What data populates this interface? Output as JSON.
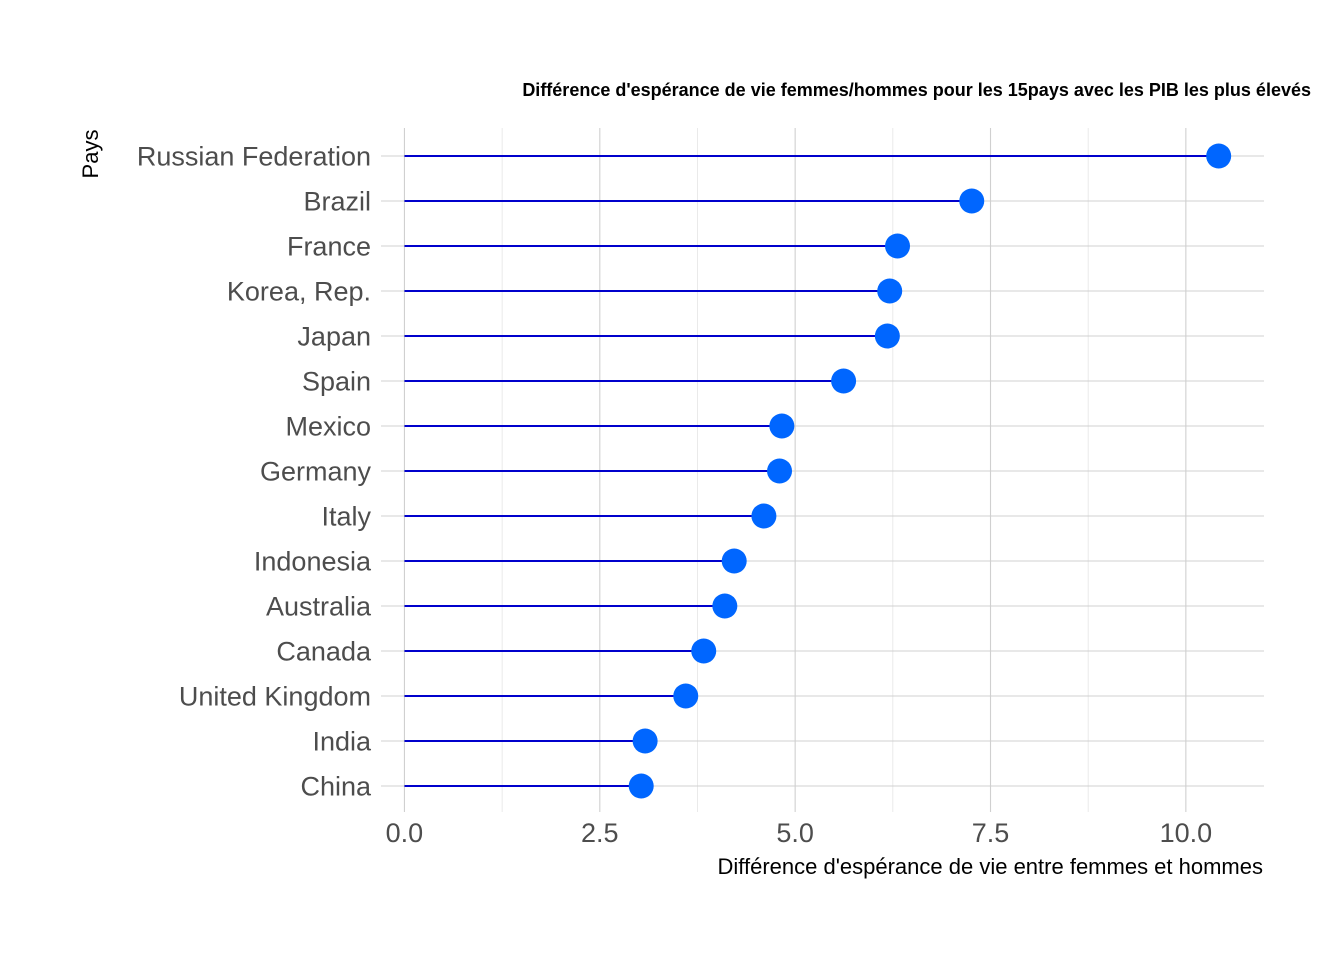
{
  "chart_data": {
    "type": "lollipop",
    "title": "Différence d'espérance de vie femmes/hommes pour les 15pays avec les PIB les plus élevés",
    "xlabel": "Différence d'espérance de vie entre femmes et hommes",
    "ylabel": "Pays",
    "xlim": [
      -0.3,
      11.0
    ],
    "xticks": [
      0.0,
      2.5,
      5.0,
      7.5,
      10.0
    ],
    "xtick_labels": [
      "0.0",
      "2.5",
      "5.0",
      "7.5",
      "10.0"
    ],
    "grid": true,
    "categories": [
      "Russian Federation",
      "Brazil",
      "France",
      "Korea, Rep.",
      "Japan",
      "Spain",
      "Mexico",
      "Germany",
      "Italy",
      "Indonesia",
      "Australia",
      "Canada",
      "United Kingdom",
      "India",
      "China"
    ],
    "values": [
      10.42,
      7.26,
      6.31,
      6.21,
      6.18,
      5.62,
      4.83,
      4.8,
      4.6,
      4.22,
      4.1,
      3.83,
      3.6,
      3.08,
      3.03
    ],
    "colors": {
      "stem": "#0000cc",
      "point": "#0066ff"
    }
  }
}
